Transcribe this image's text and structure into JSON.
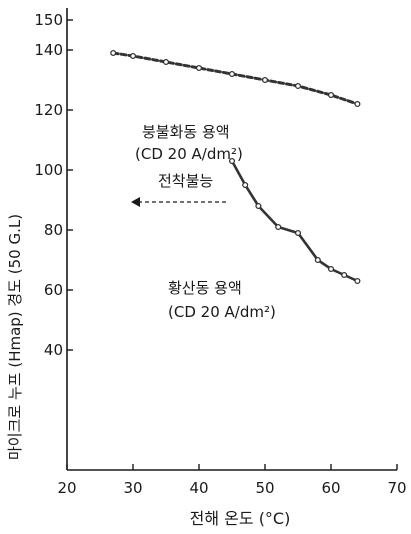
{
  "chart_data": {
    "type": "line",
    "title": "",
    "xlabel": "전해 온도 (°C)",
    "ylabel": "마이크로 누프 (Hmap)  경도 (50 G.L)",
    "xlim": [
      20,
      70
    ],
    "ylim": [
      0,
      150
    ],
    "x_ticks": [
      "20",
      "30",
      "40",
      "50",
      "60",
      "70"
    ],
    "y_ticks": [
      "40",
      "60",
      "80",
      "100",
      "120",
      "140",
      "150"
    ],
    "y_tick_values": [
      40,
      60,
      80,
      100,
      120,
      140,
      150
    ],
    "grid": false,
    "series": [
      {
        "name": "붕불화동 용액",
        "sublabel": "(CD 20 A/dm²)",
        "style": "dashed",
        "x": [
          27,
          30,
          35,
          40,
          45,
          50,
          55,
          60,
          64
        ],
        "y": [
          139,
          138,
          136,
          134,
          132,
          130,
          128,
          125,
          122
        ]
      },
      {
        "name": "황산동 용액",
        "sublabel": "(CD 20 A/dm²)",
        "style": "dotted-solid",
        "x": [
          45,
          47,
          49,
          52,
          55,
          58,
          60,
          62,
          64
        ],
        "y": [
          103,
          95,
          88,
          81,
          79,
          70,
          67,
          65,
          63
        ]
      }
    ],
    "annotations": [
      {
        "text": "전착불능",
        "arrow": "left",
        "x": 45,
        "y": 103
      }
    ],
    "colors": {
      "line": "#333333",
      "axis": "#1a1a1a",
      "text": "#1a1a1a"
    }
  }
}
